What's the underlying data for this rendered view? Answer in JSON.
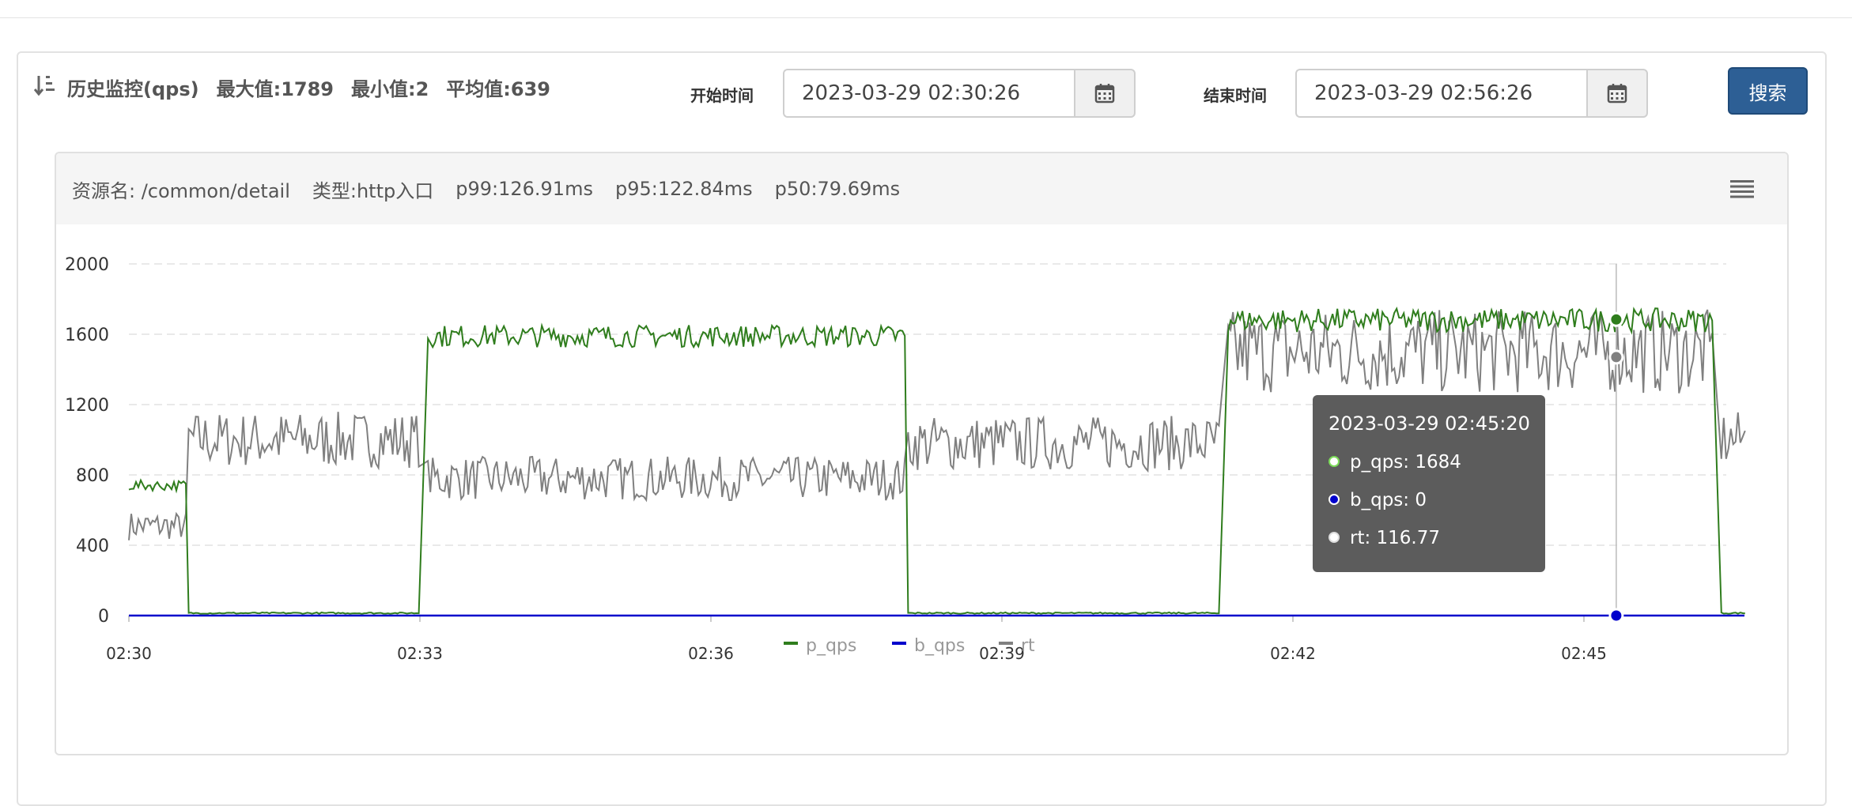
{
  "toolbar": {
    "title": "历史监控(qps)",
    "max_label": "最大值:1789",
    "min_label": "最小值:2",
    "avg_label": "平均值:639",
    "start_label": "开始时间",
    "start_value": "2023-03-29 02:30:26",
    "end_label": "结束时间",
    "end_value": "2023-03-29 02:56:26",
    "search_label": "搜索"
  },
  "chart_header": {
    "resource": "资源名: /common/detail",
    "type": "类型:http入口",
    "p99": "p99:126.91ms",
    "p95": "p95:122.84ms",
    "p50": "p50:79.69ms"
  },
  "icons": {
    "sort": "sort-descending-icon",
    "calendar": "calendar-icon",
    "menu": "hamburger-menu-icon"
  },
  "colors": {
    "p_qps": "#2f7d1d",
    "b_qps": "#0000cc",
    "rt": "#808080",
    "search_button": "#2d5f95",
    "tooltip_bg": "#555555"
  },
  "tooltip": {
    "time": "2023-03-29 02:45:20",
    "rows": [
      "p_qps: 1684",
      "b_qps: 0",
      "rt: 116.77"
    ]
  },
  "chart_data": {
    "type": "line",
    "x_ticks": [
      "02:30",
      "02:33",
      "02:36",
      "02:39",
      "02:42",
      "02:45"
    ],
    "ylim": [
      0,
      2000
    ],
    "y_ticks": [
      0,
      400,
      800,
      1200,
      1600,
      2000
    ],
    "grid": true,
    "legend_position": "bottom-center",
    "series": [
      {
        "name": "p_qps",
        "segments": [
          {
            "x": [
              "02:30",
              "02:30:36"
            ],
            "value": 740
          },
          {
            "x": [
              "02:30:37",
              "02:33:00"
            ],
            "value": 10
          },
          {
            "x": [
              "02:33:05",
              "02:38:00"
            ],
            "value": 1590
          },
          {
            "x": [
              "02:38:02",
              "02:41:15"
            ],
            "value": 10
          },
          {
            "x": [
              "02:41:20",
              "02:46:20"
            ],
            "value": 1680
          },
          {
            "x": [
              "02:46:25",
              "02:46:40"
            ],
            "value": 10
          }
        ]
      },
      {
        "name": "b_qps",
        "segments": [
          {
            "x": [
              "02:30",
              "02:46:40"
            ],
            "value": 0
          }
        ]
      },
      {
        "name": "rt",
        "segments": [
          {
            "x": [
              "02:30",
              "02:30:36"
            ],
            "value": 510
          },
          {
            "x": [
              "02:30:37",
              "02:33:00"
            ],
            "value": 1000
          },
          {
            "x": [
              "02:33:05",
              "02:38:00"
            ],
            "value": 780
          },
          {
            "x": [
              "02:38:02",
              "02:41:15"
            ],
            "value": 980
          },
          {
            "x": [
              "02:41:20",
              "02:46:20"
            ],
            "value": 1500
          },
          {
            "x": [
              "02:46:25",
              "02:46:40"
            ],
            "value": 1000
          }
        ]
      }
    ],
    "hover": {
      "x": "02:45:20",
      "p_qps": 1684,
      "b_qps": 0,
      "rt": 116.77
    }
  }
}
